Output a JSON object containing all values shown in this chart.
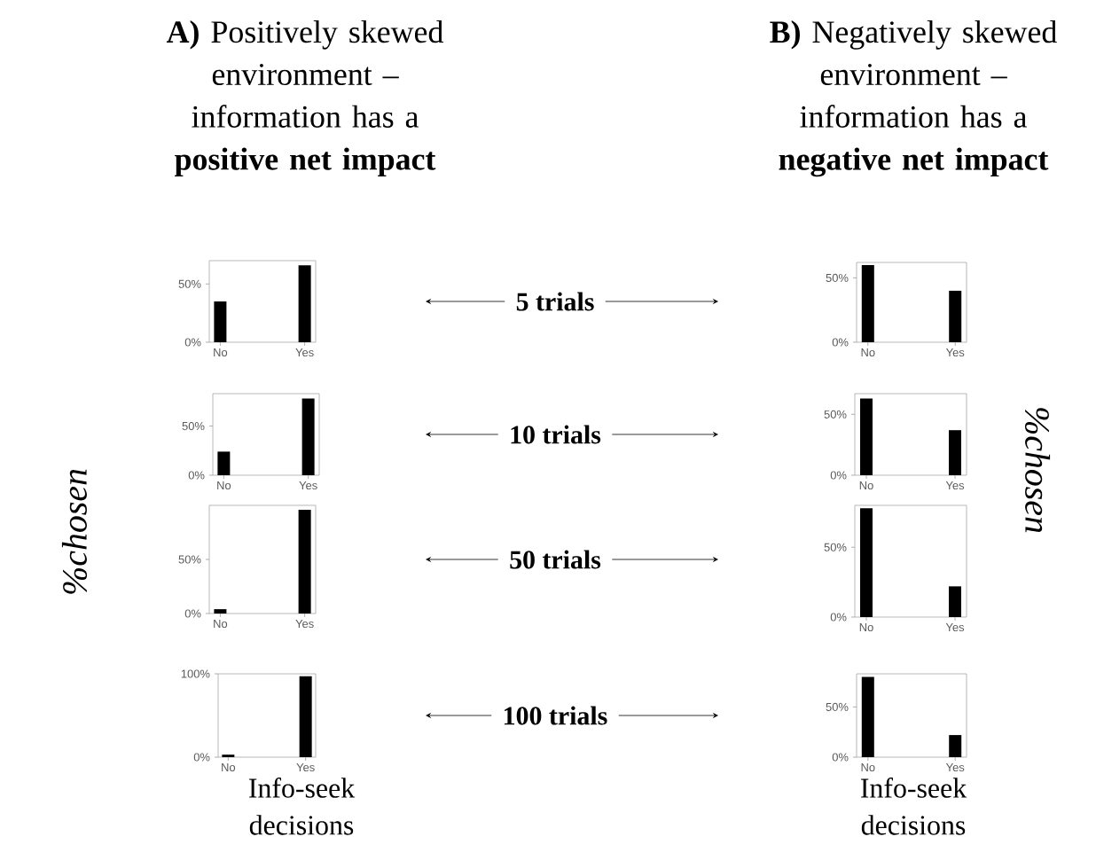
{
  "chart_data": [
    {
      "type": "bar",
      "title": "**A)** Positively skewed environment – information has a **positive net impact**",
      "categories": [
        "No",
        "Yes"
      ],
      "values": [
        35,
        66
      ],
      "color": "#000000",
      "ylim": [
        0,
        70
      ],
      "yticks": [
        {
          "value": 0,
          "label": "0%"
        },
        {
          "value": 50,
          "label": "50%"
        }
      ],
      "annotations": [
        "5 trials"
      ]
    },
    {
      "type": "bar",
      "title": "**B)** Negatively skewed environment – information has a **negative net impact**",
      "categories": [
        "No",
        "Yes"
      ],
      "values": [
        60,
        40
      ],
      "color": "#000000",
      "ylim": [
        0,
        62
      ],
      "yticks": [
        {
          "value": 0,
          "label": "0%"
        },
        {
          "value": 50,
          "label": "50%"
        }
      ]
    },
    {
      "type": "bar",
      "categories": [
        "No",
        "Yes"
      ],
      "values": [
        24,
        78
      ],
      "color": "#000000",
      "ylim": [
        0,
        83
      ],
      "yticks": [
        {
          "value": 0,
          "label": "0%"
        },
        {
          "value": 50,
          "label": "50%"
        }
      ],
      "annotations": [
        "10 trials"
      ]
    },
    {
      "type": "bar",
      "ylabel": "%chosen",
      "categories": [
        "No",
        "Yes"
      ],
      "values": [
        63,
        37
      ],
      "color": "#000000",
      "ylim": [
        0,
        67
      ],
      "yticks": [
        {
          "value": 0,
          "label": "0%"
        },
        {
          "value": 50,
          "label": "50%"
        }
      ]
    },
    {
      "type": "bar",
      "ylabel": "%chosen",
      "categories": [
        "No",
        "Yes"
      ],
      "values": [
        4,
        96
      ],
      "color": "#000000",
      "ylim": [
        0,
        100
      ],
      "yticks": [
        {
          "value": 0,
          "label": "0%"
        },
        {
          "value": 50,
          "label": "50%"
        }
      ],
      "annotations": [
        "50 trials"
      ]
    },
    {
      "type": "bar",
      "categories": [
        "No",
        "Yes"
      ],
      "values": [
        78,
        22
      ],
      "color": "#000000",
      "ylim": [
        0,
        80
      ],
      "yticks": [
        {
          "value": 0,
          "label": "0%"
        },
        {
          "value": 50,
          "label": "50%"
        }
      ]
    },
    {
      "type": "bar",
      "xlabel": "Info-seek decisions",
      "categories": [
        "No",
        "Yes"
      ],
      "values": [
        3,
        97
      ],
      "color": "#000000",
      "ylim": [
        0,
        100
      ],
      "yticks": [
        {
          "value": 0,
          "label": "0%"
        },
        {
          "value": 100,
          "label": "100%"
        }
      ],
      "annotations": [
        "100 trials"
      ]
    },
    {
      "type": "bar",
      "xlabel": "Info-seek decisions",
      "categories": [
        "No",
        "Yes"
      ],
      "values": [
        80,
        22
      ],
      "color": "#000000",
      "ylim": [
        0,
        83
      ],
      "yticks": [
        {
          "value": 0,
          "label": "0%"
        },
        {
          "value": 50,
          "label": "50%"
        }
      ]
    }
  ]
}
